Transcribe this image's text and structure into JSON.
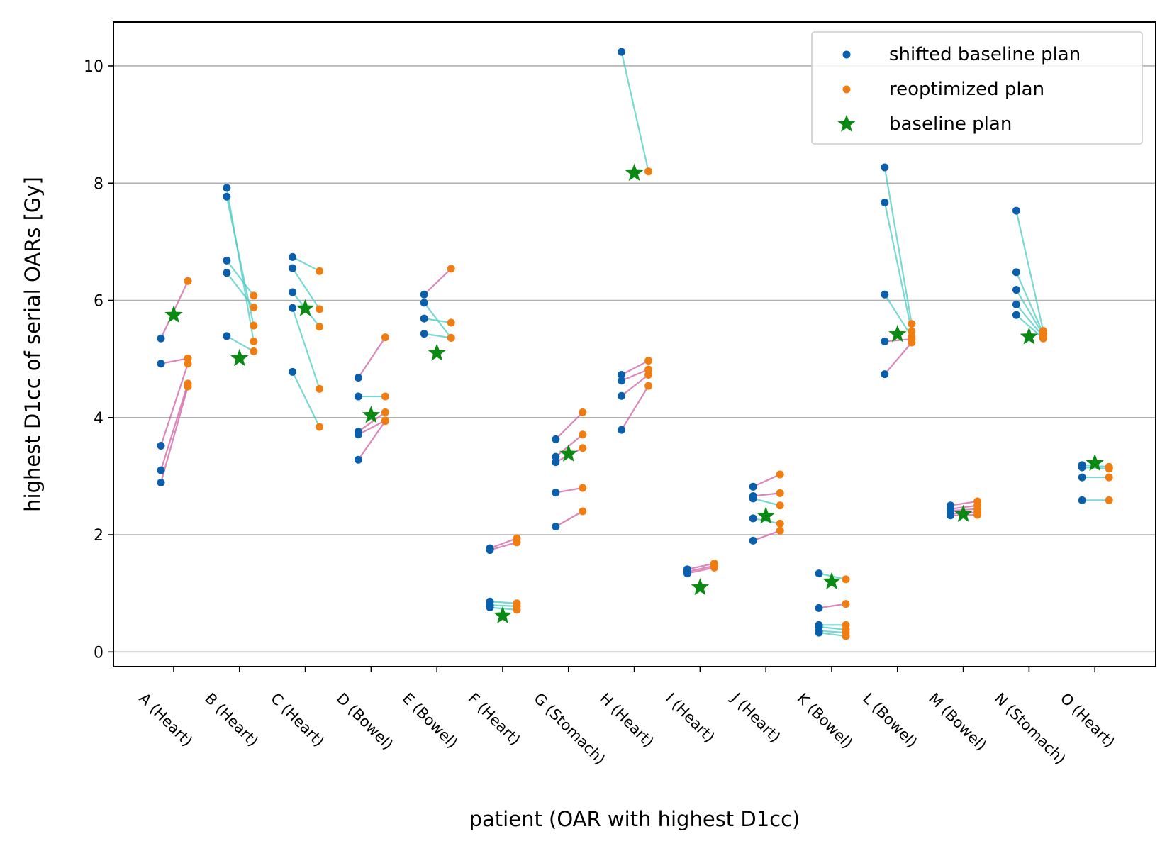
{
  "chart_data": {
    "type": "scatter",
    "xlabel": "patient (OAR with highest D1cc)",
    "ylabel": "highest D1cc of serial OARs [Gy]",
    "ylim": [
      -0.25,
      10.75
    ],
    "yticks": [
      0,
      2,
      4,
      6,
      8,
      10
    ],
    "grid": "horizontal",
    "legend_position": "top-right",
    "categories": [
      "A (Heart)",
      "B (Heart)",
      "C (Heart)",
      "D (Bowel)",
      "E (Bowel)",
      "F (Heart)",
      "G (Stomach)",
      "H (Heart)",
      "I (Heart)",
      "J (Heart)",
      "K (Bowel)",
      "L (Bowel)",
      "M (Bowel)",
      "N (Stomach)",
      "O (Heart)"
    ],
    "legend": [
      {
        "label": "shifted baseline plan",
        "marker": "dot",
        "color": "#0a5fad"
      },
      {
        "label": "reoptimized plan",
        "marker": "dot",
        "color": "#ef7d12"
      },
      {
        "label": "baseline plan",
        "marker": "star",
        "color": "#0a8a12"
      }
    ],
    "colors": {
      "shifted": "#0a5fad",
      "reoptimized": "#ef7d12",
      "baseline": "#0a8a12",
      "line_decrease": "#4ecbc4",
      "line_increase": "#cf5fa1"
    },
    "patients": [
      {
        "id": "A",
        "baseline": 5.75,
        "pairs": [
          [
            5.35,
            6.33
          ],
          [
            4.92,
            5.01
          ],
          [
            3.52,
            4.92
          ],
          [
            3.1,
            4.58
          ],
          [
            2.89,
            4.53
          ]
        ]
      },
      {
        "id": "B",
        "baseline": 5.01,
        "pairs": [
          [
            7.92,
            5.3
          ],
          [
            7.77,
            5.57
          ],
          [
            6.68,
            6.08
          ],
          [
            6.47,
            5.88
          ],
          [
            5.39,
            5.13
          ]
        ]
      },
      {
        "id": "C",
        "baseline": 5.86,
        "pairs": [
          [
            6.74,
            6.5
          ],
          [
            6.55,
            5.85
          ],
          [
            6.14,
            5.55
          ],
          [
            5.87,
            4.49
          ],
          [
            4.78,
            3.84
          ]
        ]
      },
      {
        "id": "D",
        "baseline": 4.04,
        "pairs": [
          [
            4.68,
            5.37
          ],
          [
            4.36,
            4.36
          ],
          [
            3.76,
            4.09
          ],
          [
            3.71,
            3.95
          ],
          [
            3.28,
            3.94
          ]
        ]
      },
      {
        "id": "E",
        "baseline": 5.1,
        "pairs": [
          [
            6.1,
            6.54
          ],
          [
            5.96,
            5.36
          ],
          [
            5.69,
            5.62
          ],
          [
            5.43,
            5.36
          ]
        ]
      },
      {
        "id": "F",
        "baseline": 0.62,
        "pairs": [
          [
            1.77,
            1.94
          ],
          [
            1.74,
            1.87
          ],
          [
            0.86,
            0.83
          ],
          [
            0.8,
            0.78
          ],
          [
            0.76,
            0.72
          ]
        ]
      },
      {
        "id": "G",
        "baseline": 3.38,
        "pairs": [
          [
            3.63,
            4.09
          ],
          [
            3.33,
            3.71
          ],
          [
            3.24,
            3.48
          ],
          [
            2.72,
            2.8
          ],
          [
            2.14,
            2.4
          ]
        ]
      },
      {
        "id": "H",
        "baseline": 8.17,
        "pairs": [
          [
            10.24,
            8.2
          ],
          [
            4.73,
            4.97
          ],
          [
            4.63,
            4.82
          ],
          [
            4.37,
            4.73
          ],
          [
            3.79,
            4.54
          ]
        ]
      },
      {
        "id": "I",
        "baseline": 1.1,
        "pairs": [
          [
            1.41,
            1.51
          ],
          [
            1.37,
            1.47
          ],
          [
            1.34,
            1.44
          ]
        ]
      },
      {
        "id": "J",
        "baseline": 2.32,
        "pairs": [
          [
            2.82,
            3.03
          ],
          [
            2.66,
            2.71
          ],
          [
            2.62,
            2.5
          ],
          [
            2.28,
            2.19
          ],
          [
            1.9,
            2.07
          ]
        ]
      },
      {
        "id": "K",
        "baseline": 1.2,
        "pairs": [
          [
            1.34,
            1.24
          ],
          [
            0.75,
            0.82
          ],
          [
            0.46,
            0.46
          ],
          [
            0.43,
            0.38
          ],
          [
            0.36,
            0.33
          ],
          [
            0.33,
            0.27
          ]
        ]
      },
      {
        "id": "L",
        "baseline": 5.42,
        "pairs": [
          [
            8.27,
            5.6
          ],
          [
            7.67,
            5.47
          ],
          [
            6.1,
            5.38
          ],
          [
            5.3,
            5.34
          ],
          [
            4.74,
            5.28
          ]
        ]
      },
      {
        "id": "M",
        "baseline": 2.35,
        "pairs": [
          [
            2.5,
            2.57
          ],
          [
            2.44,
            2.5
          ],
          [
            2.41,
            2.44
          ],
          [
            2.36,
            2.38
          ],
          [
            2.33,
            2.34
          ]
        ]
      },
      {
        "id": "N",
        "baseline": 5.38,
        "pairs": [
          [
            7.53,
            5.48
          ],
          [
            6.48,
            5.43
          ],
          [
            6.18,
            5.41
          ],
          [
            5.93,
            5.38
          ],
          [
            5.75,
            5.35
          ]
        ]
      },
      {
        "id": "O",
        "baseline": 3.22,
        "pairs": [
          [
            3.19,
            3.16
          ],
          [
            3.15,
            3.13
          ],
          [
            2.98,
            2.98
          ],
          [
            2.59,
            2.59
          ]
        ]
      }
    ]
  }
}
